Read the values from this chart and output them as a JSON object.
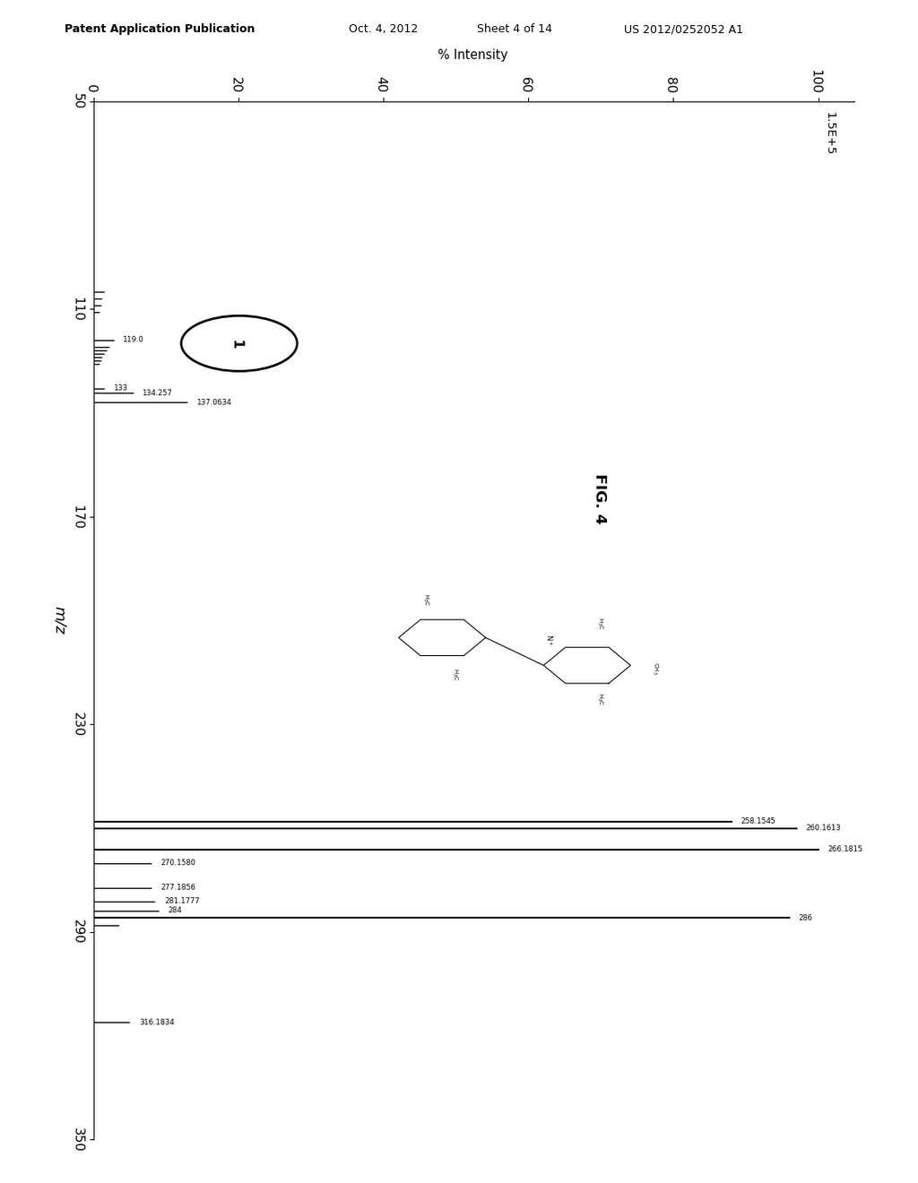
{
  "header_left": "Patent Application Publication",
  "header_mid1": "Oct. 4, 2012",
  "header_mid2": "Sheet 4 of 14",
  "header_right": "US 2012/0252052 A1",
  "fig_label": "FIG. 4",
  "compound_num": "1",
  "mz_label": "m/z",
  "intensity_label": "% Intensity",
  "abs_intensity": "1.5E+5",
  "mz_min": 50,
  "mz_max": 350,
  "pct_min": 0,
  "pct_max": 100,
  "mz_ticks": [
    50,
    110,
    170,
    230,
    290,
    350
  ],
  "pct_ticks": [
    0,
    20,
    40,
    60,
    80,
    100
  ],
  "peaks": [
    {
      "mz": 105.0,
      "pct": 1.5,
      "label": ""
    },
    {
      "mz": 107.0,
      "pct": 1.2,
      "label": ""
    },
    {
      "mz": 109.0,
      "pct": 1.0,
      "label": ""
    },
    {
      "mz": 111.0,
      "pct": 0.8,
      "label": ""
    },
    {
      "mz": 119.0,
      "pct": 2.8,
      "label": "119.0"
    },
    {
      "mz": 121.0,
      "pct": 2.2,
      "label": ""
    },
    {
      "mz": 122.0,
      "pct": 1.8,
      "label": ""
    },
    {
      "mz": 123.0,
      "pct": 1.5,
      "label": ""
    },
    {
      "mz": 124.0,
      "pct": 1.2,
      "label": ""
    },
    {
      "mz": 125.0,
      "pct": 1.0,
      "label": ""
    },
    {
      "mz": 126.0,
      "pct": 0.8,
      "label": ""
    },
    {
      "mz": 133.0,
      "pct": 1.5,
      "label": "133"
    },
    {
      "mz": 134.257,
      "pct": 5.5,
      "label": "134.257"
    },
    {
      "mz": 137.0634,
      "pct": 13.0,
      "label": "137.0634"
    },
    {
      "mz": 258.1545,
      "pct": 88.0,
      "label": "258.1545"
    },
    {
      "mz": 260.1613,
      "pct": 97.0,
      "label": "260.1613"
    },
    {
      "mz": 266.1815,
      "pct": 100.0,
      "label": "266.1815"
    },
    {
      "mz": 270.158,
      "pct": 8.0,
      "label": "270.1580"
    },
    {
      "mz": 277.1856,
      "pct": 8.0,
      "label": "277.1856"
    },
    {
      "mz": 281.1777,
      "pct": 8.5,
      "label": "281.1777"
    },
    {
      "mz": 284.0,
      "pct": 9.0,
      "label": "284"
    },
    {
      "mz": 286.0,
      "pct": 96.0,
      "label": "286"
    },
    {
      "mz": 288.0,
      "pct": 3.5,
      "label": ""
    },
    {
      "mz": 316.1834,
      "pct": 5.0,
      "label": "316.1834"
    }
  ],
  "bg_color": "#ffffff",
  "peak_color": "#000000",
  "axes_lw": 1.0
}
